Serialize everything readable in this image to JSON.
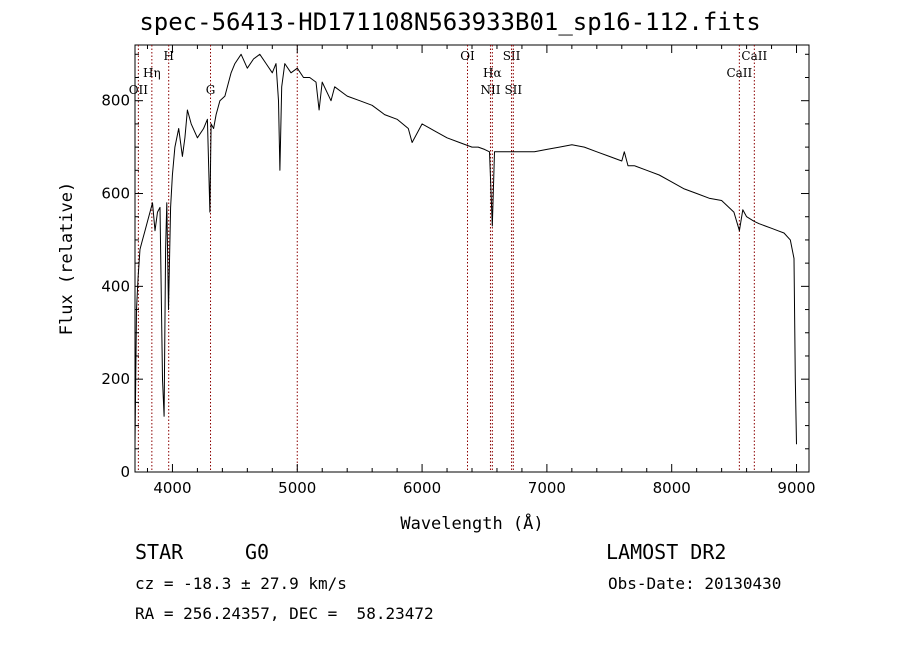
{
  "chart_data": {
    "type": "line",
    "title": "spec-56413-HD171108N563933B01_sp16-112.fits",
    "xlabel": "Wavelength (Å)",
    "ylabel": "Flux (relative)",
    "xlim": [
      3700,
      9100
    ],
    "ylim": [
      0,
      920
    ],
    "xticks": [
      "4000",
      "5000",
      "6000",
      "7000",
      "8000",
      "9000"
    ],
    "yticks": [
      "0",
      "200",
      "400",
      "600",
      "800"
    ],
    "series": [
      {
        "x": [
          3700,
          3712,
          3725,
          3740,
          3760,
          3780,
          3800,
          3820,
          3840,
          3860,
          3880,
          3900,
          3920,
          3933,
          3945,
          3955,
          3968,
          3985,
          4000,
          4020,
          4050,
          4080,
          4100,
          4120,
          4150,
          4200,
          4250,
          4280,
          4300,
          4310,
          4330,
          4350,
          4380,
          4420,
          4470,
          4500,
          4550,
          4600,
          4650,
          4700,
          4750,
          4800,
          4830,
          4850,
          4861,
          4875,
          4900,
          4950,
          5000,
          5050,
          5100,
          5150,
          5175,
          5200,
          5270,
          5300,
          5400,
          5500,
          5600,
          5700,
          5800,
          5890,
          5920,
          6000,
          6100,
          6200,
          6300,
          6400,
          6450,
          6500,
          6540,
          6563,
          6580,
          6600,
          6700,
          6800,
          6900,
          7000,
          7100,
          7200,
          7300,
          7400,
          7500,
          7600,
          7620,
          7650,
          7700,
          7800,
          7900,
          8000,
          8100,
          8200,
          8300,
          8400,
          8498,
          8542,
          8570,
          8600,
          8662,
          8700,
          8750,
          8800,
          8850,
          8900,
          8950,
          8980,
          8990,
          9000
        ],
        "y": [
          60,
          350,
          420,
          480,
          500,
          520,
          540,
          560,
          580,
          520,
          560,
          570,
          200,
          120,
          480,
          580,
          350,
          570,
          640,
          700,
          740,
          680,
          720,
          780,
          750,
          720,
          740,
          760,
          560,
          750,
          740,
          770,
          800,
          810,
          860,
          880,
          900,
          870,
          890,
          900,
          880,
          860,
          880,
          800,
          650,
          830,
          880,
          860,
          870,
          850,
          850,
          840,
          780,
          840,
          800,
          830,
          810,
          800,
          790,
          770,
          760,
          740,
          710,
          750,
          735,
          720,
          710,
          700,
          700,
          695,
          690,
          530,
          690,
          690,
          690,
          690,
          690,
          695,
          700,
          705,
          700,
          690,
          680,
          670,
          690,
          660,
          660,
          650,
          640,
          625,
          610,
          600,
          590,
          585,
          560,
          520,
          565,
          550,
          540,
          535,
          530,
          525,
          520,
          515,
          500,
          460,
          200,
          60
        ]
      }
    ],
    "lines": [
      {
        "wavelength": 3727,
        "label": "OII",
        "row": 3
      },
      {
        "wavelength": 3835,
        "label": "Hη",
        "row": 2
      },
      {
        "wavelength": 3970,
        "label": "H",
        "row": 1
      },
      {
        "wavelength": 4305,
        "label": "G",
        "row": 3
      },
      {
        "wavelength": 5000,
        "label": "",
        "row": 0
      },
      {
        "wavelength": 6364,
        "label": "OI",
        "row": 1
      },
      {
        "wavelength": 6548,
        "label": "NII",
        "row": 3
      },
      {
        "wavelength": 6563,
        "label": "Hα",
        "row": 2
      },
      {
        "wavelength": 6717,
        "label": "SII",
        "row": 1
      },
      {
        "wavelength": 6731,
        "label": "SII",
        "row": 3
      },
      {
        "wavelength": 8542,
        "label": "CaII",
        "row": 2
      },
      {
        "wavelength": 8662,
        "label": "CaII",
        "row": 1
      }
    ],
    "line_color": "#8b0000"
  },
  "info": {
    "object_class": "STAR",
    "subclass": "G0",
    "survey": "LAMOST DR2",
    "redshift": "cz = -18.3 ± 27.9 km/s",
    "obs_date": "Obs-Date: 20130430",
    "coords": "RA = 256.24357, DEC =  58.23472"
  }
}
